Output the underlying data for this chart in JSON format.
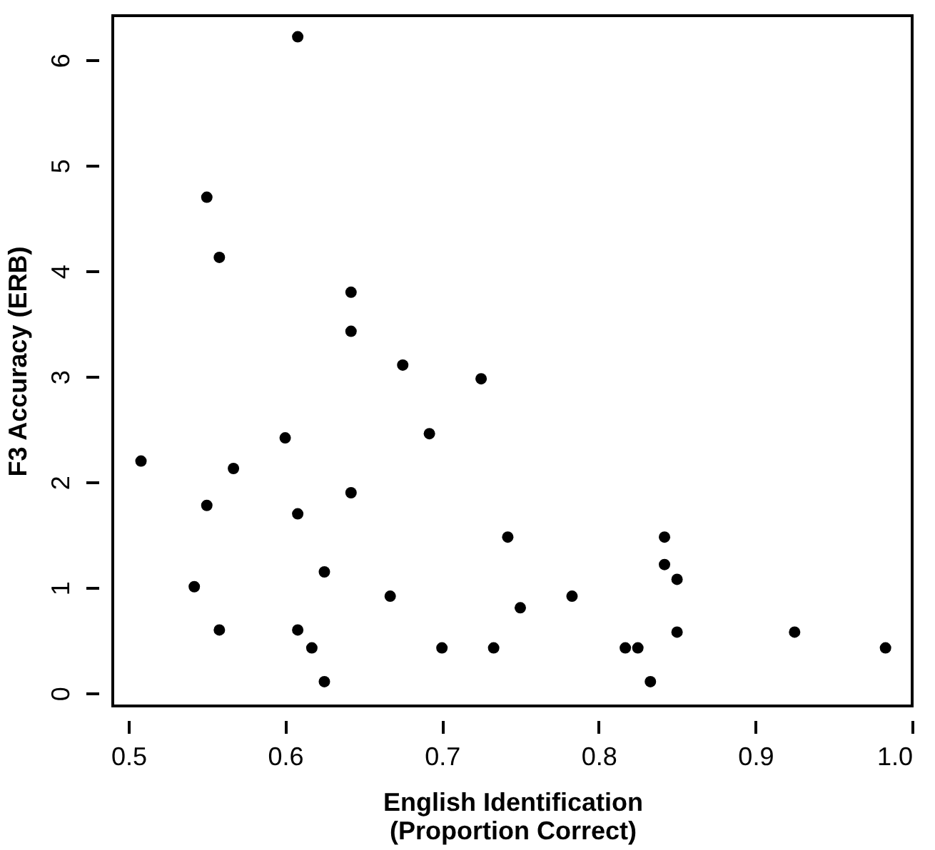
{
  "chart_data": {
    "type": "scatter",
    "xlabel": "English Identification\n(Proportion Correct)",
    "ylabel": "F3 Accuracy (ERB)",
    "x": [
      0.508,
      0.542,
      0.55,
      0.55,
      0.558,
      0.558,
      0.567,
      0.6,
      0.608,
      0.608,
      0.608,
      0.617,
      0.625,
      0.625,
      0.642,
      0.642,
      0.642,
      0.667,
      0.675,
      0.692,
      0.7,
      0.725,
      0.733,
      0.742,
      0.75,
      0.783,
      0.817,
      0.825,
      0.833,
      0.842,
      0.842,
      0.85,
      0.85,
      0.925,
      0.983
    ],
    "series": [
      {
        "color": "#000000",
        "values": [
          2.2,
          1.01,
          4.7,
          1.78,
          4.13,
          0.6,
          2.13,
          2.42,
          6.22,
          1.7,
          0.6,
          0.43,
          1.15,
          0.11,
          3.8,
          3.43,
          1.9,
          0.92,
          3.11,
          2.46,
          0.43,
          2.98,
          0.43,
          1.48,
          0.81,
          0.92,
          0.43,
          0.43,
          0.11,
          1.48,
          1.22,
          1.08,
          0.58,
          0.58,
          0.43
        ]
      }
    ],
    "xlim": [
      0.49,
      1.0
    ],
    "xticks": [
      0.5,
      0.6,
      0.7,
      0.8,
      0.9,
      {
        "value": 1,
        "label": "1.0"
      }
    ],
    "ylim": [
      -0.12,
      6.42
    ],
    "yticks": [
      0,
      1,
      2,
      3,
      4,
      5,
      6
    ],
    "marker": "circle",
    "grid": false,
    "legend": false
  }
}
